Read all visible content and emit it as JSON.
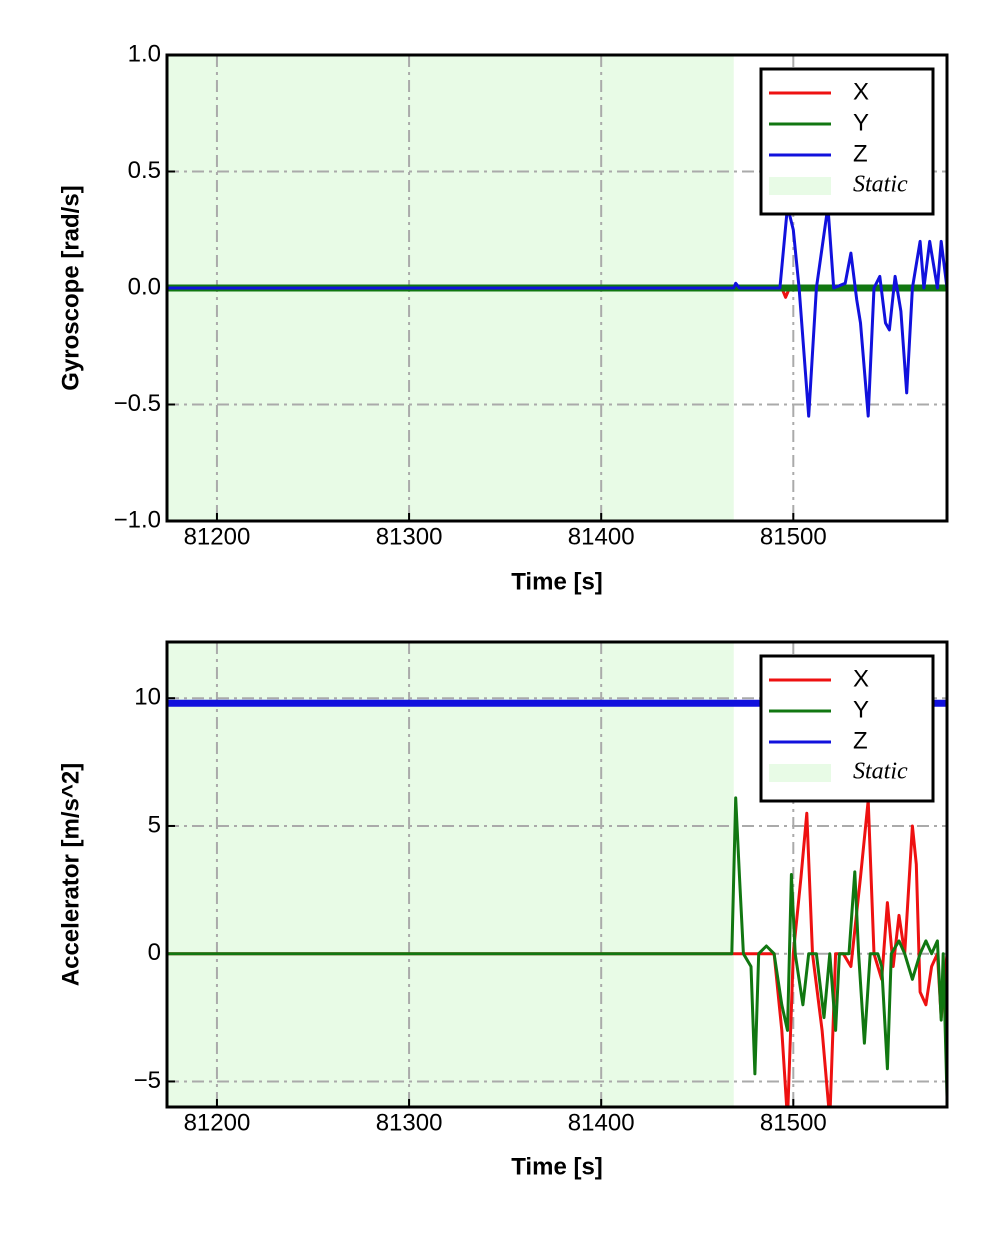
{
  "chart_data": [
    {
      "type": "line",
      "xlabel": "Time [s]",
      "ylabel": "Gyroscope [rad/s]",
      "xlim": [
        81174,
        81580
      ],
      "ylim": [
        -1,
        1
      ],
      "xticks": [
        81200,
        81300,
        81400,
        81500
      ],
      "yticks": [
        {
          "value": -1,
          "label": "−1.0"
        },
        {
          "value": -0.5,
          "label": "−0.5"
        },
        {
          "value": 0,
          "label": "0.0"
        },
        {
          "value": 0.5,
          "label": "0.5"
        },
        {
          "value": 1,
          "label": "1.0"
        }
      ],
      "grid": true,
      "legend": "upper right",
      "shaded_region": {
        "label": "Static",
        "x0": 81174,
        "x1": 81469,
        "color": "#e8fbe6"
      },
      "series": [
        {
          "name": "X",
          "color": "#ee1111",
          "x": [
            81174,
            81494,
            81496,
            81498,
            81580
          ],
          "values": [
            0,
            0,
            -0.04,
            0,
            0
          ]
        },
        {
          "name": "Y",
          "color": "#117711",
          "x": [
            81174,
            81580
          ],
          "values": [
            0,
            0
          ]
        },
        {
          "name": "Z",
          "color": "#1111dd",
          "x": [
            81174,
            81469,
            81470,
            81472,
            81493,
            81497,
            81500,
            81503,
            81508,
            81512,
            81518,
            81521,
            81527,
            81530,
            81533,
            81535,
            81539,
            81542,
            81545,
            81548,
            81550,
            81553,
            81556,
            81559,
            81562,
            81566,
            81568,
            81571,
            81575,
            81577,
            81580
          ],
          "values": [
            0,
            0,
            0.02,
            0,
            0,
            0.35,
            0.25,
            0,
            -0.55,
            0,
            0.35,
            0,
            0.02,
            0.15,
            -0.05,
            -0.15,
            -0.55,
            0,
            0.05,
            -0.15,
            -0.18,
            0.05,
            -0.1,
            -0.45,
            0,
            0.2,
            0,
            0.2,
            0,
            0.2,
            0
          ]
        }
      ]
    },
    {
      "type": "line",
      "xlabel": "Time [s]",
      "ylabel": "Accelerator [m/s^2]",
      "xlim": [
        81174,
        81580
      ],
      "ylim": [
        -6,
        12.2
      ],
      "xticks": [
        81200,
        81300,
        81400,
        81500
      ],
      "yticks": [
        {
          "value": -5,
          "label": "−5"
        },
        0,
        5,
        10
      ],
      "grid": true,
      "legend": "upper right",
      "shaded_region": {
        "label": "Static",
        "x0": 81174,
        "x1": 81469,
        "color": "#e8fbe6"
      },
      "series": [
        {
          "name": "X",
          "color": "#ee1111",
          "x": [
            81174,
            81490,
            81494,
            81497,
            81500,
            81504,
            81507,
            81510,
            81515,
            81519,
            81522,
            81526,
            81530,
            81535,
            81539,
            81542,
            81546,
            81549,
            81552,
            81555,
            81558,
            81562,
            81564,
            81566,
            81569,
            81572,
            81575,
            81577,
            81580
          ],
          "values": [
            0,
            0,
            -3,
            -6.5,
            0,
            3,
            5.5,
            0,
            -3,
            -6.5,
            0,
            0,
            -0.5,
            3,
            6,
            0,
            -1,
            2,
            -0.5,
            1.5,
            0,
            5,
            3.5,
            -1.5,
            -2,
            -0.5,
            0,
            -2.5,
            0
          ]
        },
        {
          "name": "Y",
          "color": "#117711",
          "x": [
            81174,
            81468,
            81470,
            81472,
            81474,
            81478,
            81480,
            81482,
            81486,
            81490,
            81494,
            81497,
            81499,
            81501,
            81505,
            81508,
            81512,
            81516,
            81519,
            81522,
            81524,
            81529,
            81532,
            81534,
            81537,
            81540,
            81544,
            81546,
            81549,
            81551,
            81555,
            81558,
            81562,
            81566,
            81569,
            81572,
            81575,
            81577,
            81578,
            81580
          ],
          "values": [
            0,
            0,
            6.1,
            3,
            0,
            -0.5,
            -4.7,
            0,
            0.3,
            0,
            -2,
            -3,
            3.1,
            0,
            -2,
            0,
            0,
            -2.5,
            0,
            -3,
            0,
            0,
            3.2,
            0,
            -3.5,
            0,
            0,
            -0.5,
            -4.5,
            0,
            0.5,
            0,
            -1,
            0,
            0.5,
            0,
            0.5,
            -2.6,
            0,
            -5.6
          ]
        },
        {
          "name": "Z",
          "color": "#1111dd",
          "x": [
            81174,
            81580
          ],
          "values": [
            9.8,
            9.8
          ]
        }
      ]
    }
  ]
}
